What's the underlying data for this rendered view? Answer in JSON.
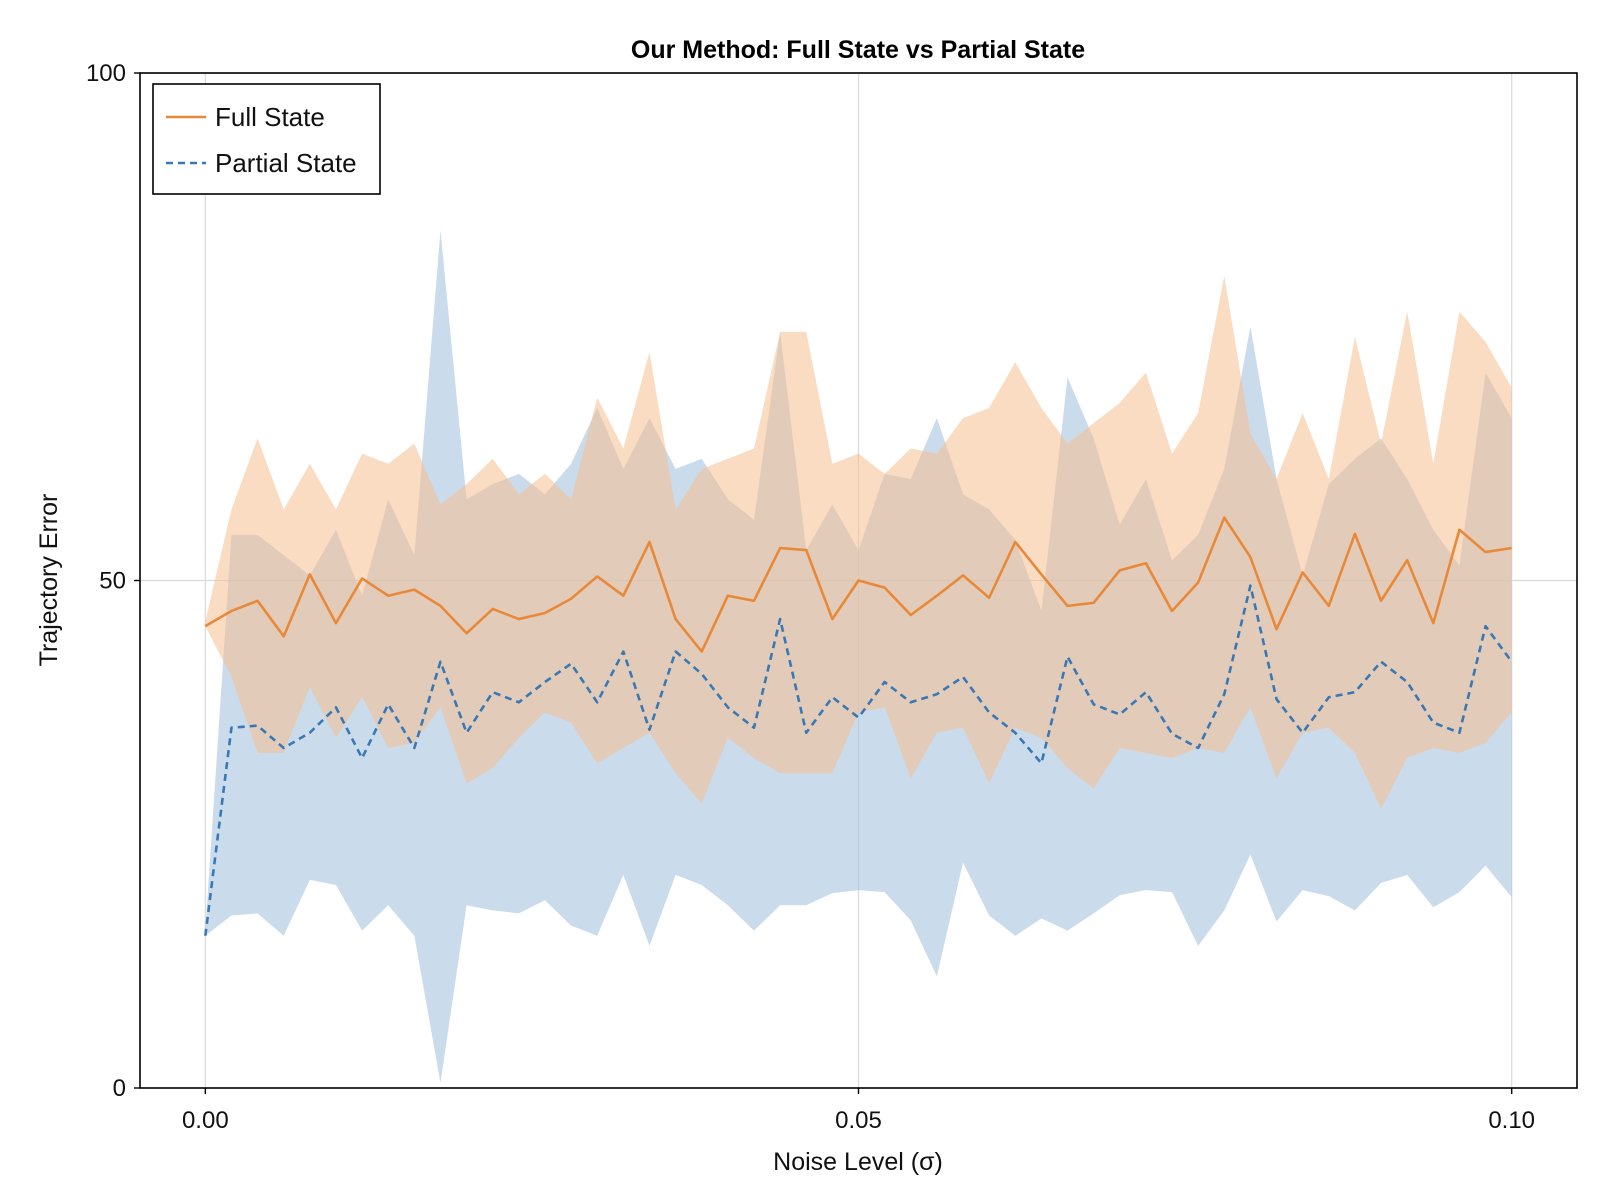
{
  "chart_data": {
    "type": "line",
    "title": "Our Method: Full State vs Partial State",
    "xlabel": "Noise Level (σ)",
    "ylabel": "Trajectory Error",
    "xlim": [
      -0.005,
      0.105
    ],
    "ylim": [
      0,
      100
    ],
    "x_ticks": [
      {
        "value": 0.0,
        "label": "0.00"
      },
      {
        "value": 0.05,
        "label": "0.05"
      },
      {
        "value": 0.1,
        "label": "0.10"
      }
    ],
    "y_ticks": [
      {
        "value": 0,
        "label": "0"
      },
      {
        "value": 50,
        "label": "50"
      },
      {
        "value": 100,
        "label": "100"
      }
    ],
    "grid": true,
    "legend_position": "top-left",
    "x": [
      0.0,
      0.002,
      0.004,
      0.006,
      0.008,
      0.01,
      0.012,
      0.014,
      0.016,
      0.018,
      0.02,
      0.022,
      0.024,
      0.026,
      0.028,
      0.03,
      0.032,
      0.034,
      0.036,
      0.038,
      0.04,
      0.042,
      0.044,
      0.046,
      0.048,
      0.05,
      0.052,
      0.054,
      0.056,
      0.058,
      0.06,
      0.062,
      0.064,
      0.066,
      0.068,
      0.07,
      0.072,
      0.074,
      0.076,
      0.078,
      0.08,
      0.082,
      0.084,
      0.086,
      0.088,
      0.09,
      0.092,
      0.094,
      0.096,
      0.098,
      0.1
    ],
    "series": [
      {
        "name": "Full State",
        "color": "#e8893a",
        "line_style": "solid",
        "band_color": "#f5c08f",
        "mean": [
          45.5,
          47.0,
          48.0,
          44.5,
          50.6,
          45.8,
          50.2,
          48.5,
          49.1,
          47.5,
          44.8,
          47.2,
          46.2,
          46.8,
          48.2,
          50.4,
          48.5,
          53.8,
          46.2,
          43.0,
          48.5,
          48.0,
          53.2,
          53.0,
          46.2,
          50.0,
          49.3,
          46.6,
          48.5,
          50.5,
          48.3,
          53.8,
          50.6,
          47.5,
          47.8,
          51.0,
          51.7,
          47.0,
          49.8,
          56.2,
          52.3,
          45.2,
          50.8,
          47.5,
          54.6,
          48.0,
          52.0,
          45.8,
          55.0,
          52.8,
          53.2
        ],
        "upper": [
          46.0,
          57.0,
          64.0,
          57.0,
          61.5,
          57.0,
          62.5,
          61.5,
          63.5,
          57.5,
          59.5,
          62.0,
          58.5,
          60.5,
          58.0,
          68.0,
          63.0,
          72.5,
          57.0,
          61.0,
          62.0,
          63.0,
          74.5,
          74.5,
          61.5,
          62.5,
          60.5,
          63.0,
          62.5,
          66.0,
          67.0,
          71.5,
          67.0,
          63.5,
          65.5,
          67.5,
          70.5,
          62.5,
          66.5,
          80.0,
          64.5,
          60.0,
          66.5,
          60.0,
          74.0,
          63.5,
          76.5,
          61.5,
          76.5,
          73.5,
          69.0
        ],
        "lower": [
          45.5,
          40.5,
          33.0,
          33.0,
          39.5,
          34.5,
          38.5,
          33.5,
          34.0,
          37.5,
          30.0,
          31.5,
          34.5,
          37.0,
          36.0,
          32.0,
          33.5,
          35.0,
          31.0,
          28.0,
          34.5,
          32.5,
          31.0,
          31.0,
          31.0,
          37.0,
          37.5,
          30.5,
          35.0,
          35.5,
          30.0,
          35.5,
          34.5,
          31.5,
          29.5,
          33.5,
          33.0,
          32.5,
          33.5,
          33.0,
          37.5,
          30.5,
          35.0,
          35.5,
          33.0,
          27.5,
          32.5,
          33.5,
          33.0,
          34.0,
          37.0
        ]
      },
      {
        "name": "Partial State",
        "color": "#3a78b5",
        "line_style": "dashed",
        "band_color": "#a7c4df",
        "mean": [
          15.0,
          35.5,
          35.7,
          33.5,
          35.0,
          37.5,
          32.5,
          37.8,
          33.5,
          42.0,
          35.0,
          39.0,
          38.0,
          40.0,
          41.8,
          38.0,
          43.0,
          35.3,
          43.0,
          40.8,
          37.5,
          35.5,
          46.2,
          35.0,
          38.5,
          36.5,
          40.0,
          38.0,
          38.8,
          40.5,
          37.0,
          35.0,
          32.0,
          42.5,
          37.8,
          36.8,
          39.0,
          34.9,
          33.5,
          38.8,
          49.5,
          38.3,
          35.0,
          38.5,
          39.0,
          42.0,
          40.0,
          36.0,
          35.0,
          45.5,
          42.0
        ],
        "upper": [
          15.5,
          54.5,
          54.5,
          52.5,
          50.5,
          55.0,
          48.5,
          58.0,
          52.5,
          84.5,
          58.0,
          59.5,
          60.5,
          58.5,
          61.5,
          67.0,
          61.0,
          66.0,
          61.0,
          62.0,
          58.0,
          56.0,
          74.5,
          53.0,
          57.5,
          53.0,
          60.5,
          60.0,
          66.0,
          58.5,
          57.0,
          54.0,
          47.0,
          70.0,
          64.0,
          55.5,
          60.0,
          52.0,
          54.5,
          61.0,
          75.0,
          60.0,
          50.5,
          59.5,
          62.0,
          64.0,
          60.0,
          55.0,
          51.5,
          70.5,
          66.0
        ],
        "lower": [
          15.0,
          17.0,
          17.2,
          15.0,
          20.5,
          20.0,
          15.5,
          18.0,
          15.0,
          0.5,
          18.0,
          17.5,
          17.2,
          18.5,
          16.0,
          15.0,
          21.0,
          14.0,
          21.0,
          20.0,
          18.0,
          15.5,
          18.0,
          18.0,
          19.2,
          19.5,
          19.3,
          16.5,
          11.0,
          22.2,
          17.0,
          15.0,
          16.7,
          15.5,
          17.2,
          19.0,
          19.5,
          19.3,
          14.0,
          17.5,
          23.0,
          16.4,
          19.5,
          18.9,
          17.5,
          20.2,
          21.0,
          17.8,
          19.3,
          21.9,
          18.8
        ]
      }
    ]
  }
}
